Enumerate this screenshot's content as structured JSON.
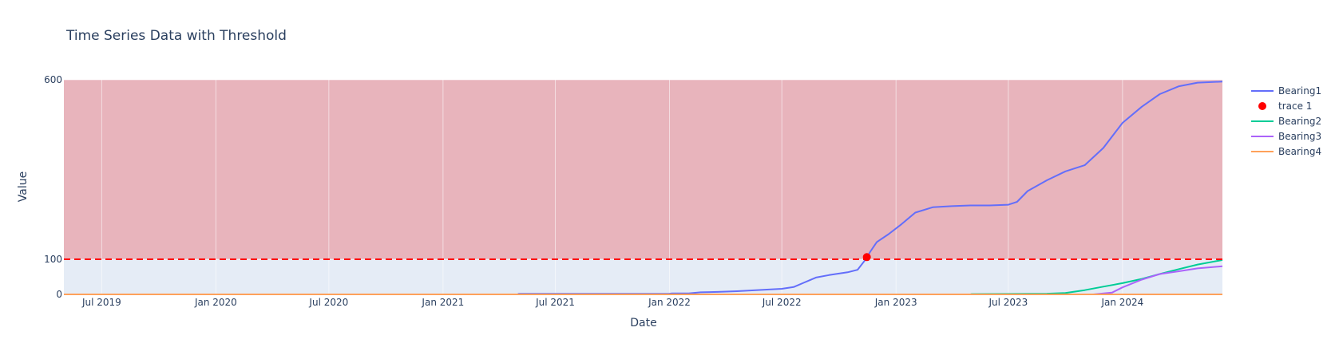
{
  "chart_data": {
    "type": "line",
    "title": "Time Series Data with Threshold",
    "xlabel": "Date",
    "ylabel": "Value",
    "xlim": [
      "2019-05-01",
      "2024-06-10"
    ],
    "ylim": [
      0,
      600
    ],
    "x_ticks": [
      {
        "date": "2019-07-01",
        "label": "Jul 2019"
      },
      {
        "date": "2020-01-01",
        "label": "Jan 2020"
      },
      {
        "date": "2020-07-01",
        "label": "Jul 2020"
      },
      {
        "date": "2021-01-01",
        "label": "Jan 2021"
      },
      {
        "date": "2021-07-01",
        "label": "Jul 2021"
      },
      {
        "date": "2022-01-01",
        "label": "Jan 2022"
      },
      {
        "date": "2022-07-01",
        "label": "Jul 2022"
      },
      {
        "date": "2023-01-01",
        "label": "Jan 2023"
      },
      {
        "date": "2023-07-01",
        "label": "Jul 2023"
      },
      {
        "date": "2024-01-01",
        "label": "Jan 2024"
      }
    ],
    "y_ticks": [
      0,
      100,
      600
    ],
    "threshold": {
      "value": 100,
      "color": "#ff0000",
      "style": "dash"
    },
    "regions": [
      {
        "from": 100,
        "to": 600,
        "color": "#e8b4bc"
      },
      {
        "from": 0,
        "to": 100,
        "color": "#e5ecf6"
      }
    ],
    "grid": true,
    "legend_position": "right",
    "series": [
      {
        "name": "Bearing1",
        "color": "#636efa",
        "mode": "line",
        "points": [
          [
            "2019-05-01",
            0
          ],
          [
            "2021-05-01",
            0
          ],
          [
            "2021-05-03",
            1.5
          ],
          [
            "2021-12-31",
            1.5
          ],
          [
            "2022-01-05",
            3
          ],
          [
            "2022-02-01",
            3
          ],
          [
            "2022-02-20",
            6
          ],
          [
            "2022-03-20",
            7
          ],
          [
            "2022-04-20",
            9
          ],
          [
            "2022-05-20",
            12
          ],
          [
            "2022-07-01",
            16
          ],
          [
            "2022-07-20",
            21
          ],
          [
            "2022-08-05",
            33
          ],
          [
            "2022-08-25",
            48
          ],
          [
            "2022-09-15",
            55
          ],
          [
            "2022-10-15",
            63
          ],
          [
            "2022-10-31",
            70
          ],
          [
            "2022-11-08",
            88
          ],
          [
            "2022-11-15",
            104
          ],
          [
            "2022-11-20",
            120
          ],
          [
            "2022-12-01",
            148
          ],
          [
            "2022-12-20",
            170
          ],
          [
            "2023-01-10",
            198
          ],
          [
            "2023-02-01",
            230
          ],
          [
            "2023-03-01",
            245
          ],
          [
            "2023-04-01",
            248
          ],
          [
            "2023-05-01",
            250
          ],
          [
            "2023-06-01",
            250
          ],
          [
            "2023-07-01",
            252
          ],
          [
            "2023-07-15",
            260
          ],
          [
            "2023-08-01",
            290
          ],
          [
            "2023-09-01",
            320
          ],
          [
            "2023-10-01",
            345
          ],
          [
            "2023-11-01",
            362
          ],
          [
            "2023-12-01",
            410
          ],
          [
            "2024-01-01",
            480
          ],
          [
            "2024-02-01",
            525
          ],
          [
            "2024-03-01",
            560
          ],
          [
            "2024-04-01",
            582
          ],
          [
            "2024-05-01",
            592
          ],
          [
            "2024-06-10",
            595
          ]
        ]
      },
      {
        "name": "trace 1",
        "color": "#ff0000",
        "mode": "markers",
        "points": [
          [
            "2022-11-15",
            106
          ]
        ]
      },
      {
        "name": "Bearing2",
        "color": "#00cc96",
        "mode": "line",
        "points": [
          [
            "2019-05-01",
            0
          ],
          [
            "2023-05-01",
            0
          ],
          [
            "2023-05-03",
            1
          ],
          [
            "2023-09-01",
            2
          ],
          [
            "2023-10-01",
            4
          ],
          [
            "2023-11-01",
            12
          ],
          [
            "2023-12-01",
            22
          ],
          [
            "2024-01-01",
            32
          ],
          [
            "2024-02-01",
            44
          ],
          [
            "2024-03-01",
            58
          ],
          [
            "2024-04-01",
            72
          ],
          [
            "2024-05-01",
            85
          ],
          [
            "2024-06-10",
            98
          ]
        ]
      },
      {
        "name": "Bearing3",
        "color": "#ab63fa",
        "mode": "line",
        "points": [
          [
            "2019-05-01",
            0
          ],
          [
            "2023-11-15",
            0
          ],
          [
            "2023-12-15",
            5
          ],
          [
            "2024-01-01",
            20
          ],
          [
            "2024-02-01",
            42
          ],
          [
            "2024-03-01",
            58
          ],
          [
            "2024-04-01",
            66
          ],
          [
            "2024-05-01",
            74
          ],
          [
            "2024-06-10",
            80
          ]
        ]
      },
      {
        "name": "Bearing4",
        "color": "#ffa15a",
        "mode": "line",
        "points": [
          [
            "2019-05-01",
            0
          ],
          [
            "2024-06-10",
            0
          ]
        ]
      }
    ]
  }
}
